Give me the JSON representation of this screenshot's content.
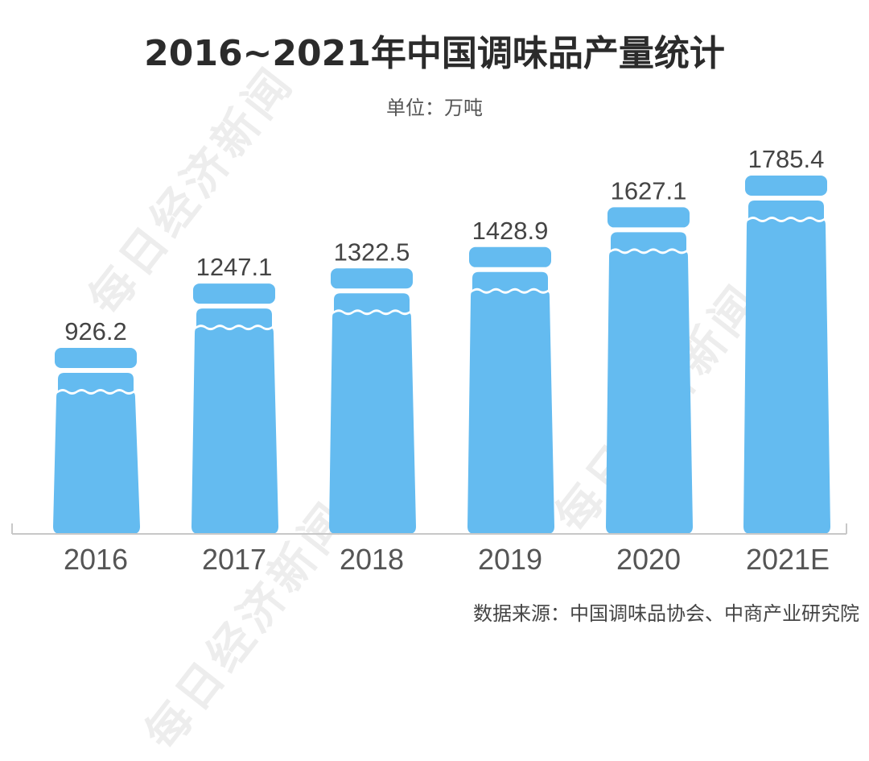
{
  "title": "2016~2021年中国调味品产量统计",
  "unit": "单位：万吨",
  "source": "数据来源：中国调味品协会、中商产业研究院",
  "watermark": "每日经济新闻",
  "colors": {
    "bar": "#64bbf0",
    "axis": "#c8c8c8",
    "label": "#555555",
    "value": "#444444"
  },
  "chart_data": {
    "type": "bar",
    "title": "2016~2021年中国调味品产量统计",
    "subtitle": "单位：万吨",
    "xlabel": "",
    "ylabel": "万吨",
    "categories": [
      "2016",
      "2017",
      "2018",
      "2019",
      "2020",
      "2021E"
    ],
    "values": [
      926.2,
      1247.1,
      1322.5,
      1428.9,
      1627.1,
      1785.4
    ],
    "value_labels": [
      "926.2",
      "1247.1",
      "1322.5",
      "1428.9",
      "1627.1",
      "1785.4"
    ],
    "grid": false,
    "legend": null,
    "annotations": [
      "数据来源：中国调味品协会、中商产业研究院"
    ]
  }
}
